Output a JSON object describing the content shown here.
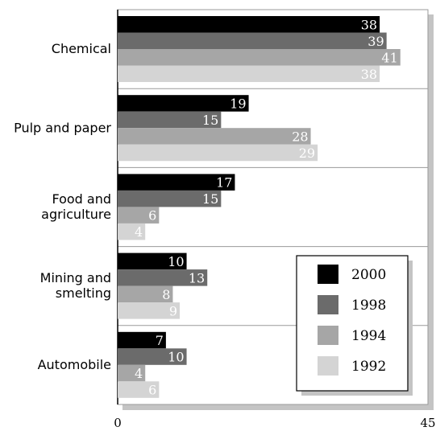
{
  "chart_data": {
    "type": "bar",
    "orientation": "horizontal",
    "title": "",
    "xlabel": "",
    "ylabel": "",
    "xlim": [
      0,
      45
    ],
    "x_tick_labels": [
      "0",
      "45"
    ],
    "categories": [
      "Chemical",
      "Pulp and paper",
      "Food and\nagriculture",
      "Mining and\nsmelting",
      "Automobile"
    ],
    "series": [
      {
        "name": "2000",
        "color": "#000000",
        "values": [
          38,
          19,
          17,
          10,
          7
        ]
      },
      {
        "name": "1998",
        "color": "#6b6b6b",
        "values": [
          39,
          15,
          15,
          13,
          10
        ]
      },
      {
        "name": "1994",
        "color": "#a6a6a6",
        "values": [
          41,
          28,
          6,
          8,
          4
        ]
      },
      {
        "name": "1992",
        "color": "#d4d4d4",
        "values": [
          38,
          29,
          4,
          9,
          6
        ]
      }
    ],
    "legend": {
      "position": "bottom-right",
      "order": [
        "2000",
        "1998",
        "1994",
        "1992"
      ]
    },
    "grid": "horizontal separators between categories"
  }
}
